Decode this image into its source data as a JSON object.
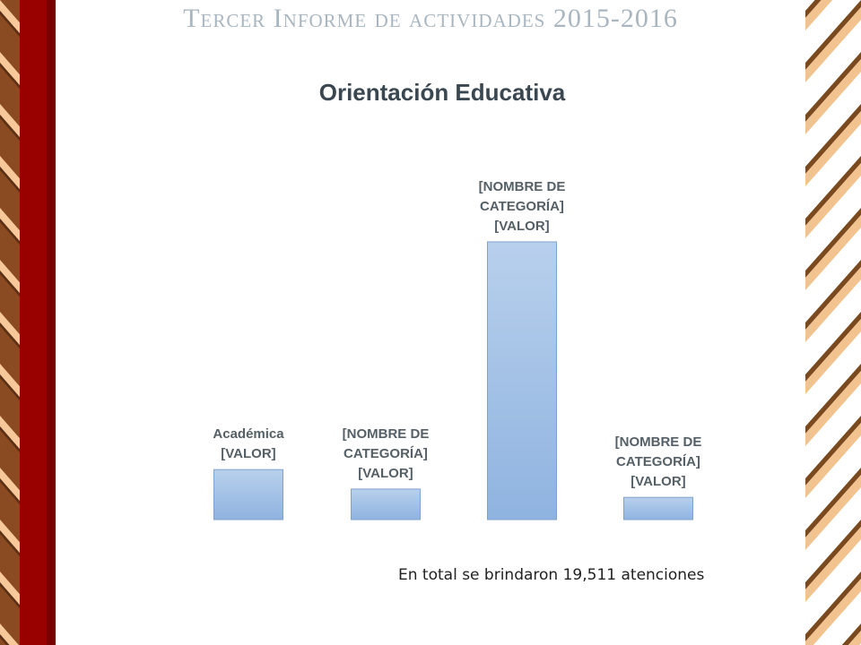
{
  "header": {
    "title": "Tercer Informe de actividades 2015-2016"
  },
  "chart_data": {
    "type": "bar",
    "title": "Orientación Educativa",
    "xlabel": "",
    "ylabel": "",
    "grid": false,
    "axis_visible": false,
    "ylim": [
      0,
      100
    ],
    "categories": [
      "Académica",
      "[NOMBRE DE CATEGORÍA]",
      "[NOMBRE DE CATEGORÍA]",
      "[NOMBRE DE CATEGORÍA]"
    ],
    "values": [
      18,
      11,
      100,
      8
    ],
    "data_labels": [
      "Académica\n[VALOR]",
      "[NOMBRE DE\nCATEGORÍA]\n[VALOR]",
      "[NOMBRE DE\nCATEGORÍA]\n[VALOR]",
      "[NOMBRE DE\nCATEGORÍA]\n[VALOR]"
    ],
    "bar_color": "#9fc1e6"
  },
  "footnote": "En total se brindaron 19,511 atenciones",
  "colors": {
    "maroon": "#990000",
    "stripe_light": "#f6c89a",
    "stripe_dark": "#8a5a2a"
  }
}
